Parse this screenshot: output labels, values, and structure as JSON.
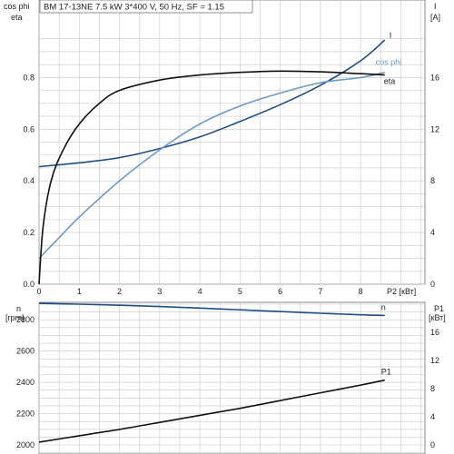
{
  "chart_data": [
    {
      "type": "line",
      "title": "BM 17-13NE   7.5 kW   3*400 V, 50 Hz, SF = 1.15",
      "xlabel": "P2 [кВт]",
      "x_ticks": [
        "0",
        "1",
        "2",
        "3",
        "4",
        "5",
        "6",
        "7",
        "8"
      ],
      "xlim": [
        0,
        9.6
      ],
      "left_axis_label_lines": [
        "cos phi",
        "eta"
      ],
      "left_ticks": [
        "0.0",
        "0.2",
        "0.4",
        "0.6",
        "0.8"
      ],
      "ylim_left": [
        0,
        1.0
      ],
      "right_axis_label_lines": [
        "I",
        "[A]"
      ],
      "right_ticks": [
        "0",
        "4",
        "8",
        "12",
        "16"
      ],
      "ylim_right": [
        0,
        20
      ],
      "grid": true,
      "series": [
        {
          "name": "I",
          "axis": "right",
          "color": "#1f4e86",
          "points": [
            [
              0,
              9.1
            ],
            [
              1,
              9.4
            ],
            [
              2,
              9.8
            ],
            [
              3,
              10.5
            ],
            [
              4,
              11.4
            ],
            [
              5,
              12.6
            ],
            [
              6,
              13.9
            ],
            [
              7,
              15.4
            ],
            [
              8,
              17.3
            ],
            [
              8.6,
              18.9
            ]
          ]
        },
        {
          "name": "cos phi",
          "axis": "left",
          "color": "#6e9ac4",
          "points": [
            [
              0,
              0.1
            ],
            [
              0.5,
              0.18
            ],
            [
              1,
              0.26
            ],
            [
              2,
              0.4
            ],
            [
              3,
              0.52
            ],
            [
              4,
              0.62
            ],
            [
              5,
              0.69
            ],
            [
              6,
              0.74
            ],
            [
              7,
              0.78
            ],
            [
              8,
              0.8
            ],
            [
              8.6,
              0.82
            ]
          ]
        },
        {
          "name": "eta",
          "axis": "left",
          "color": "#111111",
          "points": [
            [
              0,
              0.0
            ],
            [
              0.1,
              0.22
            ],
            [
              0.3,
              0.4
            ],
            [
              0.6,
              0.52
            ],
            [
              1,
              0.62
            ],
            [
              1.5,
              0.7
            ],
            [
              2,
              0.75
            ],
            [
              3,
              0.79
            ],
            [
              4,
              0.81
            ],
            [
              5,
              0.82
            ],
            [
              6,
              0.825
            ],
            [
              7,
              0.822
            ],
            [
              8,
              0.815
            ],
            [
              8.6,
              0.81
            ]
          ]
        }
      ]
    },
    {
      "type": "line",
      "xlim": [
        0,
        9.6
      ],
      "left_axis_label_lines": [
        "n",
        "[rpm]"
      ],
      "left_ticks": [
        "2000",
        "2200",
        "2400",
        "2600",
        "2800"
      ],
      "ylim_left": [
        2000,
        2900
      ],
      "right_axis_label_lines": [
        "P1",
        "[кВт]"
      ],
      "right_ticks": [
        "0",
        "4",
        "8",
        "12",
        "16"
      ],
      "ylim_right": [
        0,
        20
      ],
      "grid": true,
      "series": [
        {
          "name": "n",
          "axis": "left",
          "color": "#1f4e86",
          "points": [
            [
              0,
              2905
            ],
            [
              1,
              2900
            ],
            [
              2,
              2893
            ],
            [
              3,
              2885
            ],
            [
              4,
              2875
            ],
            [
              5,
              2864
            ],
            [
              6,
              2853
            ],
            [
              7,
              2842
            ],
            [
              8,
              2832
            ],
            [
              8.6,
              2828
            ]
          ]
        },
        {
          "name": "P1",
          "axis": "right",
          "color": "#111111",
          "points": [
            [
              0,
              0.4
            ],
            [
              1,
              1.3
            ],
            [
              2,
              2.2
            ],
            [
              3,
              3.2
            ],
            [
              4,
              4.2
            ],
            [
              5,
              5.2
            ],
            [
              6,
              6.3
            ],
            [
              7,
              7.4
            ],
            [
              8,
              8.5
            ],
            [
              8.6,
              9.2
            ]
          ]
        }
      ]
    }
  ]
}
